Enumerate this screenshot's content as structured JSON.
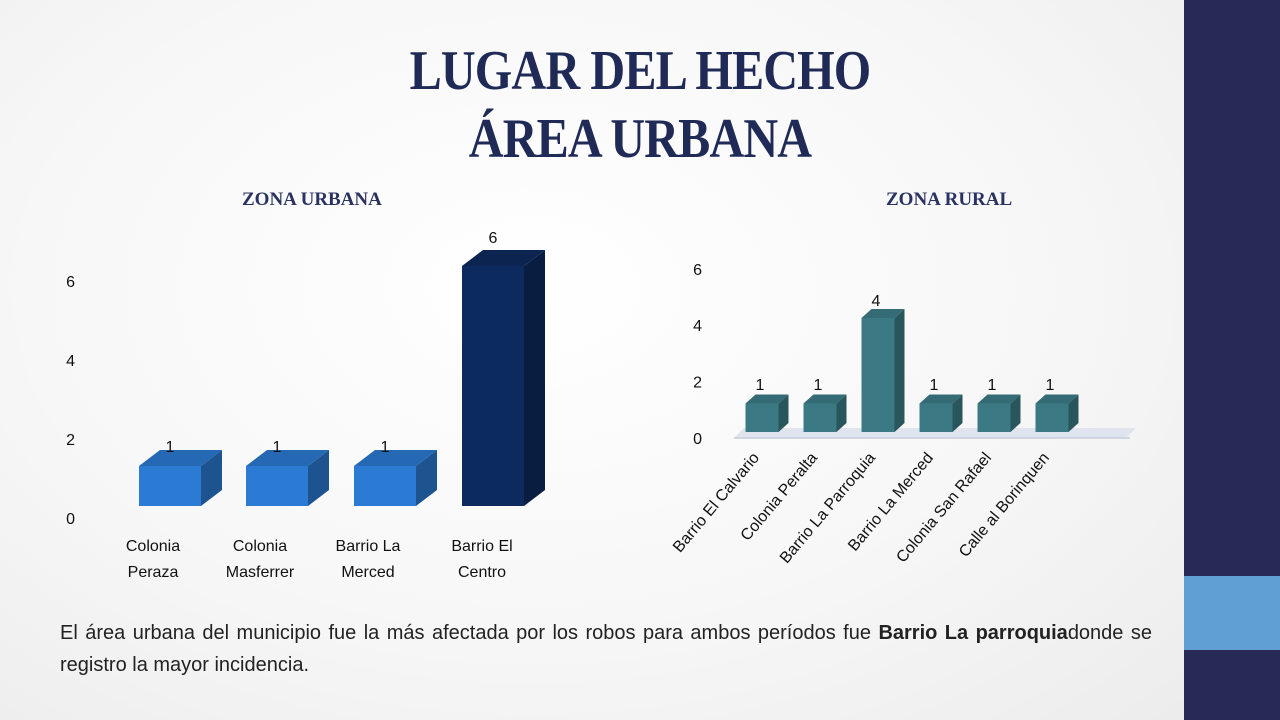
{
  "slide": {
    "title_line1": "LUGAR DEL HECHO",
    "title_line2": "ÁREA URBANA",
    "caption_part1": "El área urbana del municipio fue la más afectada por los robos para ambos períodos fue ",
    "caption_bold": "Barrio La parroquia",
    "caption_part2": "donde se registro la mayor incidencia."
  },
  "colors": {
    "title": "#1f2a56",
    "sidebar_dark": "#272a55",
    "sidebar_light": "#5f9fd4",
    "urban_bar": "#2b7bd4",
    "urban_bar_highlight": "#0d2a5e",
    "rural_bar": "#3b7a84"
  },
  "chart_data": [
    {
      "type": "bar",
      "style": "3d",
      "title": "ZONA URBANA",
      "categories": [
        "Colonia Peraza",
        "Colonia Masferrer",
        "Barrio La Merced",
        "Barrio El Centro"
      ],
      "category_lines": [
        [
          "Colonia",
          "Peraza"
        ],
        [
          "Colonia",
          "Masferrer"
        ],
        [
          "Barrio La",
          "Merced"
        ],
        [
          "Barrio El",
          "Centro"
        ]
      ],
      "values": [
        1,
        1,
        1,
        6
      ],
      "yticks": [
        0,
        2,
        4,
        6
      ],
      "ylim": [
        0,
        6
      ],
      "grid": false,
      "legend": false
    },
    {
      "type": "bar",
      "style": "3d",
      "title": "ZONA RURAL",
      "categories": [
        "Barrio El Calvario",
        "Colonia Peralta",
        "Barrio La Parroquia",
        "Barrio La Merced",
        "Colonia San Rafael",
        "Calle al Borinquen"
      ],
      "values": [
        1,
        1,
        4,
        1,
        1,
        1
      ],
      "yticks": [
        0,
        2,
        4,
        6
      ],
      "ylim": [
        0,
        6
      ],
      "grid": false,
      "legend": false
    }
  ]
}
